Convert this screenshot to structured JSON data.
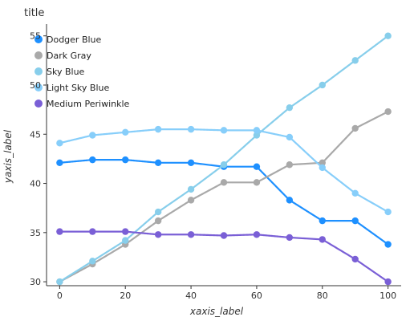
{
  "chart_data": {
    "type": "line",
    "title": "title",
    "xlabel": "xaxis_label",
    "ylabel": "yaxis_label",
    "xlim": [
      -4,
      104
    ],
    "ylim": [
      29.6,
      56.2
    ],
    "xticks": [
      0,
      20,
      40,
      60,
      80,
      100
    ],
    "yticks": [
      30,
      35,
      40,
      45,
      50,
      55
    ],
    "grid": false,
    "legend_placement": "top-left",
    "series": [
      {
        "name": "Dodger Blue",
        "color": "#1E90FF",
        "x": [
          0,
          10,
          20,
          30,
          40,
          50,
          60,
          70,
          80,
          90,
          100
        ],
        "y": [
          42.1,
          42.4,
          42.4,
          42.1,
          42.1,
          41.7,
          41.7,
          38.3,
          36.2,
          36.2,
          33.8
        ]
      },
      {
        "name": "Dark Gray",
        "color": "#A9A9A9",
        "x": [
          0,
          10,
          20,
          30,
          40,
          50,
          60,
          70,
          80,
          90,
          100
        ],
        "y": [
          30.0,
          31.8,
          33.8,
          36.2,
          38.3,
          40.1,
          40.1,
          41.9,
          42.1,
          45.6,
          47.3
        ]
      },
      {
        "name": "Sky Blue",
        "color": "#87CEEB",
        "x": [
          0,
          10,
          20,
          30,
          40,
          50,
          60,
          70,
          80,
          90,
          100
        ],
        "y": [
          30.0,
          32.1,
          34.2,
          37.1,
          39.4,
          41.9,
          44.9,
          47.7,
          50.0,
          52.5,
          55.0
        ]
      },
      {
        "name": "Light Sky Blue",
        "color": "#87CEFA",
        "x": [
          0,
          10,
          20,
          30,
          40,
          50,
          60,
          70,
          80,
          90,
          100
        ],
        "y": [
          44.1,
          44.9,
          45.2,
          45.5,
          45.5,
          45.4,
          45.4,
          44.7,
          41.6,
          39.0,
          37.1
        ]
      },
      {
        "name": "Medium Periwinkle",
        "color": "#7A5FD6",
        "x": [
          0,
          10,
          20,
          30,
          40,
          50,
          60,
          70,
          80,
          90,
          100
        ],
        "y": [
          35.1,
          35.1,
          35.1,
          34.8,
          34.8,
          34.7,
          34.8,
          34.5,
          34.3,
          32.3,
          30.0
        ]
      }
    ]
  }
}
